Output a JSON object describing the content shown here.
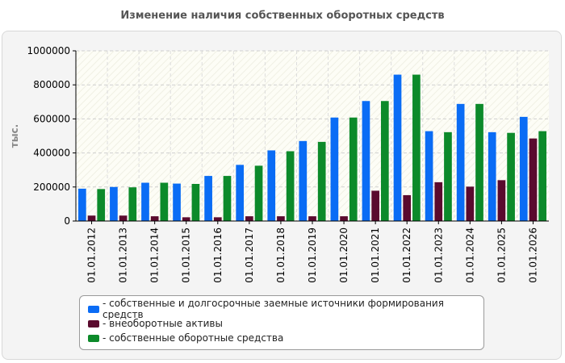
{
  "chart_data": {
    "type": "bar",
    "title": "Изменение наличия собственных оборотных средств",
    "ylabel": "тыс.",
    "xlabel": "",
    "ylim": [
      0,
      1000000
    ],
    "yticks": [
      0,
      200000,
      400000,
      600000,
      800000,
      1000000
    ],
    "grid": true,
    "legend_position": "bottom",
    "categories": [
      "01.01.2012",
      "01.01.2013",
      "01.01.2014",
      "01.01.2015",
      "01.01.2016",
      "01.01.2017",
      "01.01.2018",
      "01.01.2019",
      "01.01.2020",
      "01.01.2021",
      "01.01.2022",
      "01.01.2023",
      "01.01.2024",
      "01.01.2025",
      "01.01.2026"
    ],
    "series": [
      {
        "name": "- собственные и долгосрочные заемные источники формирования средств",
        "color": "#0a6cf5",
        "values": [
          190000,
          200000,
          225000,
          220000,
          265000,
          330000,
          415000,
          470000,
          608000,
          705000,
          860000,
          528000,
          688000,
          522000,
          612000
        ]
      },
      {
        "name": "- внеоборотные активы",
        "color": "#5a0a2e",
        "values": [
          32000,
          32000,
          28000,
          22000,
          22000,
          28000,
          28000,
          28000,
          28000,
          178000,
          152000,
          228000,
          202000,
          240000,
          485000
        ]
      },
      {
        "name": "- собственные оборотные средства",
        "color": "#0c8a2a",
        "values": [
          188000,
          198000,
          225000,
          218000,
          265000,
          325000,
          410000,
          465000,
          608000,
          705000,
          860000,
          522000,
          688000,
          518000,
          528000
        ]
      }
    ]
  }
}
